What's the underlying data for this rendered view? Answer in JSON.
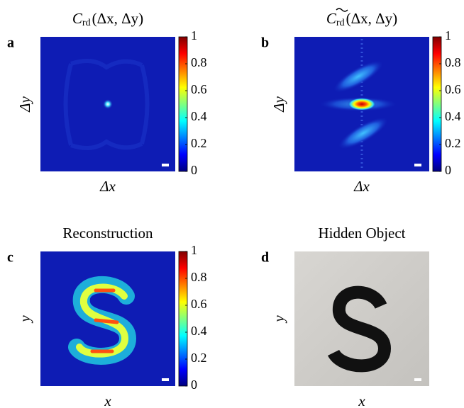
{
  "chart_data": [
    {
      "type": "heatmap",
      "panel": "a",
      "title": "C",
      "title_subscript": "rd",
      "title_suffix": "(Δx, Δy)",
      "xlabel": "Δx",
      "ylabel": "Δy",
      "zlim": [
        0,
        1
      ],
      "zticks": [
        0,
        0.2,
        0.4,
        0.6,
        0.8,
        1
      ]
    },
    {
      "type": "heatmap",
      "panel": "b",
      "title": "C",
      "title_subscript": "rd",
      "title_suffix": "(Δx, Δy)",
      "xlabel": "Δx",
      "ylabel": "Δy",
      "zlim": [
        0,
        1
      ],
      "zticks": [
        0,
        0.2,
        0.4,
        0.6,
        0.8,
        1
      ]
    },
    {
      "type": "heatmap",
      "panel": "c",
      "title": "Reconstruction",
      "xlabel": "x",
      "ylabel": "y",
      "zlim": [
        0,
        1
      ],
      "zticks": [
        0,
        0.2,
        0.4,
        0.6,
        0.8,
        1
      ]
    },
    {
      "type": "image",
      "panel": "d",
      "title": "Hidden Object",
      "xlabel": "x",
      "ylabel": "y"
    }
  ]
}
